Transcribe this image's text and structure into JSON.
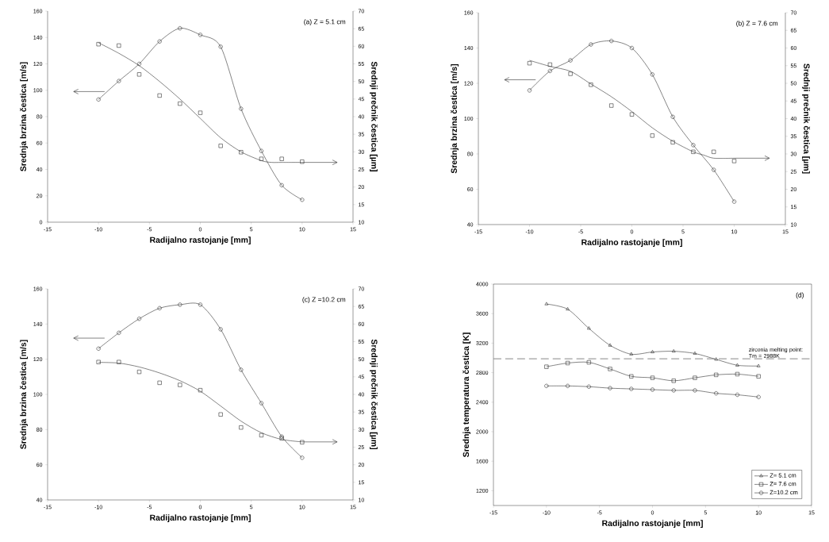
{
  "chart_data": [
    {
      "type": "line",
      "title": "(a) Z = 5.1 cm",
      "xlabel": "Radijalno rastojanje [mm]",
      "ylabel": "Srednja brzina čestica [m/s]",
      "y2label": "Srednji prečnik čestica [µm]",
      "xlim": [
        -15,
        15
      ],
      "xticks": [
        -15,
        -10,
        -5,
        0,
        5,
        10,
        15
      ],
      "ylim": [
        0,
        160
      ],
      "yticks": [
        0,
        20,
        40,
        60,
        80,
        100,
        120,
        140,
        160
      ],
      "y2lim": [
        10,
        70
      ],
      "y2ticks": [
        10,
        15,
        20,
        25,
        30,
        35,
        40,
        45,
        50,
        55,
        60,
        65,
        70
      ],
      "series": [
        {
          "marker": "circle",
          "color": "#333333",
          "x": [
            -10,
            -8,
            -6,
            -4,
            -2,
            0,
            2,
            4,
            6,
            8,
            10
          ],
          "values": [
            93,
            107,
            120,
            137,
            147,
            142,
            133,
            86,
            54,
            28,
            17
          ]
        },
        {
          "type": "scatter",
          "marker": "square",
          "axis": "y2",
          "color": "#333333",
          "x": [
            -10,
            -8,
            -6,
            -4,
            -2,
            0,
            2,
            4,
            6,
            8,
            10
          ],
          "values": [
            60.6,
            60.2,
            52,
            46,
            43.7,
            41.1,
            31.7,
            29.9,
            28,
            28,
            27.2
          ]
        },
        {
          "type": "line",
          "marker": "none",
          "axis": "y2",
          "color": "#333333",
          "x": [
            -10,
            -8,
            -6,
            -4,
            -2,
            0,
            2,
            4,
            6,
            7,
            8,
            10
          ],
          "values": [
            61,
            58,
            54.5,
            50,
            45,
            39.5,
            34,
            30,
            27.5,
            27,
            27,
            27
          ]
        }
      ]
    },
    {
      "type": "line",
      "title": "(b) Z = 7.6 cm",
      "xlabel": "Radijalno rastojanje [mm]",
      "ylabel": "Srednja brzina čestica [m/s]",
      "y2label": "Srednji prečnik čestica [µm]",
      "xlim": [
        -15,
        15
      ],
      "xticks": [
        -15,
        -10,
        -5,
        0,
        5,
        10,
        15
      ],
      "ylim": [
        40,
        160
      ],
      "yticks": [
        40,
        60,
        80,
        100,
        120,
        140,
        160
      ],
      "y2lim": [
        10,
        70
      ],
      "y2ticks": [
        10,
        15,
        20,
        25,
        30,
        35,
        40,
        45,
        50,
        55,
        60,
        65,
        70
      ],
      "series": [
        {
          "marker": "circle",
          "color": "#333333",
          "x": [
            -10,
            -8,
            -6,
            -4,
            -2,
            0,
            2,
            4,
            6,
            8,
            10
          ],
          "values": [
            116,
            127,
            133,
            142,
            144,
            140,
            125,
            101,
            85,
            71,
            53
          ]
        },
        {
          "type": "scatter",
          "marker": "square",
          "axis": "y2",
          "color": "#333333",
          "x": [
            -10,
            -8,
            -6,
            -4,
            -2,
            0,
            2,
            4,
            6,
            8,
            10
          ],
          "values": [
            55.7,
            55.3,
            52.7,
            49.6,
            43.7,
            41.2,
            35.2,
            33.3,
            30.6,
            30.6,
            28
          ]
        },
        {
          "type": "line",
          "marker": "none",
          "axis": "y2",
          "color": "#333333",
          "x": [
            -10,
            -8,
            -6,
            -4,
            -2,
            0,
            2,
            4,
            6,
            7,
            8,
            10
          ],
          "values": [
            56.5,
            54.8,
            53.4,
            49.8,
            46.2,
            42,
            37.4,
            33.6,
            30.6,
            29.7,
            28.8,
            28.8
          ]
        }
      ]
    },
    {
      "type": "line",
      "title": "(c) Z =10.2 cm",
      "xlabel": "Radijalno rastojanje [mm]",
      "ylabel": "Srednja brzina čestica [m/s]",
      "y2label": "Srednji prečnik čestica [µm]",
      "xlim": [
        -15,
        15
      ],
      "xticks": [
        -15,
        -10,
        -5,
        0,
        5,
        10,
        15
      ],
      "ylim": [
        40,
        160
      ],
      "yticks": [
        40,
        60,
        80,
        100,
        120,
        140,
        160
      ],
      "y2lim": [
        10,
        70
      ],
      "y2ticks": [
        10,
        15,
        20,
        25,
        30,
        35,
        40,
        45,
        50,
        55,
        60,
        65,
        70
      ],
      "series": [
        {
          "marker": "circle",
          "color": "#333333",
          "x": [
            -10,
            -8,
            -6,
            -4,
            -2,
            0,
            2,
            4,
            6,
            8,
            10
          ],
          "values": [
            126,
            135,
            143,
            149,
            151,
            151,
            137,
            114,
            95,
            76,
            64
          ]
        },
        {
          "type": "scatter",
          "marker": "square",
          "axis": "y2",
          "color": "#333333",
          "x": [
            -10,
            -8,
            -6,
            -4,
            -2,
            0,
            2,
            4,
            6,
            8,
            10
          ],
          "values": [
            49.2,
            49.2,
            46.4,
            43.3,
            42.7,
            41.2,
            34.3,
            30.6,
            28.4,
            27.5,
            26.4
          ]
        },
        {
          "type": "line",
          "marker": "none",
          "axis": "y2",
          "color": "#333333",
          "x": [
            -10,
            -8,
            -6,
            -4,
            -2,
            0,
            2,
            4,
            6,
            8,
            10
          ],
          "values": [
            49.1,
            48.9,
            47.8,
            46.1,
            43.9,
            40.9,
            36.7,
            32.4,
            29.1,
            27.2,
            26.5
          ]
        }
      ]
    },
    {
      "type": "line",
      "title": "(d)",
      "xlabel": "Radijalno rastojanje [mm]",
      "ylabel": "Srednja temperatura čestica [K]",
      "legend": "bottom right",
      "xlim": [
        -15,
        15
      ],
      "xticks": [
        -15,
        -10,
        -5,
        0,
        5,
        10,
        15
      ],
      "ylim": [
        1000,
        4000
      ],
      "yticks": [
        1200,
        1600,
        2000,
        2400,
        2800,
        3200,
        3600,
        4000
      ],
      "ref_lines": [
        {
          "axis": "y",
          "value": 2988,
          "label": "zirconia melting point: Tm = 2988K",
          "color": "#888888",
          "line_style": "dashed"
        }
      ],
      "series": [
        {
          "name": "Z= 5.1 cm",
          "marker": "triangle",
          "color": "#333333",
          "x": [
            -10,
            -8,
            -6,
            -4,
            -2,
            0,
            2,
            4,
            6,
            8,
            10
          ],
          "values": [
            3730,
            3660,
            3400,
            3170,
            3050,
            3080,
            3090,
            3060,
            2980,
            2900,
            2890
          ]
        },
        {
          "name": "Z= 7.6 cm",
          "marker": "square",
          "color": "#333333",
          "x": [
            -10,
            -8,
            -6,
            -4,
            -2,
            0,
            2,
            4,
            6,
            8,
            10
          ],
          "values": [
            2880,
            2930,
            2940,
            2850,
            2750,
            2730,
            2690,
            2730,
            2770,
            2780,
            2750
          ]
        },
        {
          "name": "Z=10.2 cm",
          "marker": "circle",
          "color": "#333333",
          "x": [
            -10,
            -8,
            -6,
            -4,
            -2,
            0,
            2,
            4,
            6,
            8,
            10
          ],
          "values": [
            2620,
            2620,
            2610,
            2590,
            2580,
            2570,
            2560,
            2560,
            2520,
            2500,
            2470
          ]
        }
      ]
    }
  ]
}
